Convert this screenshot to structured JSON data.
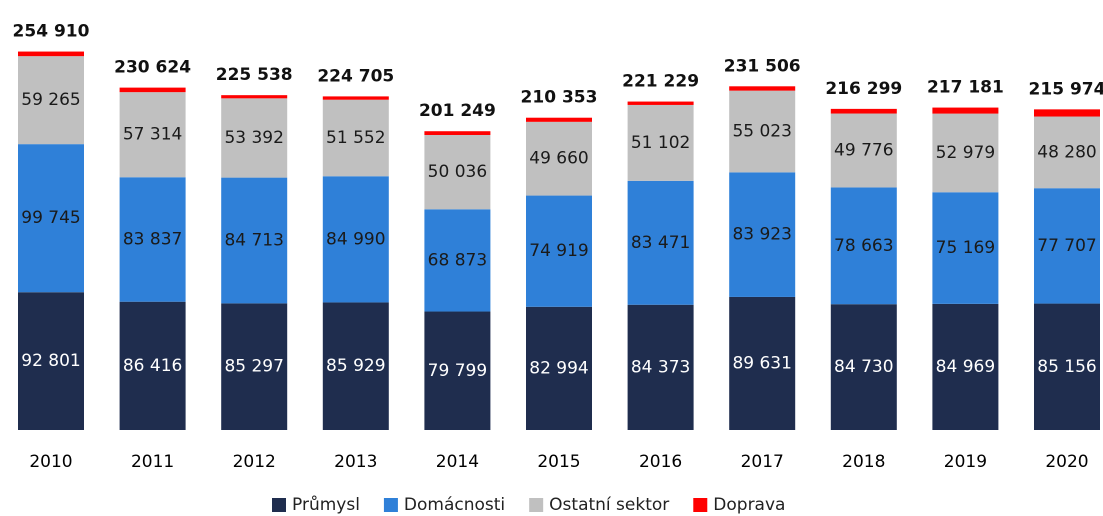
{
  "chart_data": {
    "type": "stacked_bar",
    "categories": [
      "2010",
      "2011",
      "2012",
      "2013",
      "2014",
      "2015",
      "2016",
      "2017",
      "2018",
      "2019",
      "2020"
    ],
    "series": [
      {
        "name": "Průmysl",
        "color": "#1f2d4e",
        "values": [
          92801,
          86416,
          85297,
          85929,
          79799,
          82994,
          84373,
          89631,
          84730,
          84969,
          85156
        ],
        "value_labels": [
          "92 801",
          "86 416",
          "85 297",
          "85 929",
          "79 799",
          "82 994",
          "84 373",
          "89 631",
          "84 730",
          "84 969",
          "85 156"
        ]
      },
      {
        "name": "Domácnosti",
        "color": "#2f80d8",
        "values": [
          99745,
          83837,
          84713,
          84990,
          68873,
          74919,
          83471,
          83923,
          78663,
          75169,
          77707
        ],
        "value_labels": [
          "99 745",
          "83 837",
          "84 713",
          "84 990",
          "68 873",
          "74 919",
          "83 471",
          "83 923",
          "78 663",
          "75 169",
          "77 707"
        ]
      },
      {
        "name": "Ostatní sektor",
        "color": "#c0c0c0",
        "values": [
          59265,
          57314,
          53392,
          51552,
          50036,
          49660,
          51102,
          55023,
          49776,
          52979,
          48280
        ],
        "value_labels": [
          "59 265",
          "57 314",
          "53 392",
          "51 552",
          "50 036",
          "49 660",
          "51 102",
          "55 023",
          "49 776",
          "52 979",
          "48 280"
        ]
      },
      {
        "name": "Doprava",
        "color": "#ff0000",
        "values": [
          3099,
          3057,
          2136,
          2234,
          2541,
          2780,
          2283,
          2929,
          3130,
          4064,
          4831
        ]
      }
    ],
    "totals": {
      "values": [
        254910,
        230624,
        225538,
        224705,
        201249,
        210353,
        221229,
        231506,
        216299,
        217181,
        215974
      ],
      "value_labels": [
        "254 910",
        "230 624",
        "225 538",
        "224 705",
        "201 249",
        "210 353",
        "221 229",
        "231 506",
        "216 299",
        "217 181",
        "215 974"
      ]
    },
    "ylim": [
      0,
      260000
    ],
    "legend": "bottom"
  }
}
